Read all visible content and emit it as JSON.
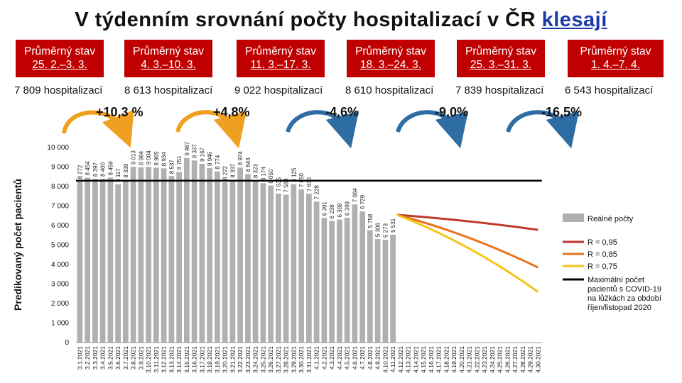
{
  "title": {
    "main": "V týdenním srovnání počty hospitalizací v ČR",
    "link": "klesají"
  },
  "periods": [
    {
      "label": "Průměrný stav",
      "range": "25. 2.–3. 3.",
      "hosp": "7 809 hospitalizací"
    },
    {
      "label": "Průměrný stav",
      "range": "4. 3.–10. 3.",
      "hosp": "8 613 hospitalizací"
    },
    {
      "label": "Průměrný stav",
      "range": "11. 3.–17. 3.",
      "hosp": "9 022 hospitalizací"
    },
    {
      "label": "Průměrný stav",
      "range": "18. 3.–24. 3.",
      "hosp": "8 610 hospitalizací"
    },
    {
      "label": "Průměrný stav",
      "range": "25. 3.–31. 3.",
      "hosp": "7 839 hospitalizací"
    },
    {
      "label": "Průměrný stav",
      "range": "1. 4.–7. 4.",
      "hosp": "6 543 hospitalizací"
    }
  ],
  "changes": [
    "+10,3 %",
    "+4,8%",
    "-4,6%",
    "-9,0%",
    "-16,5%"
  ],
  "colors": {
    "banner": "#c00000",
    "bars": "#b0b0b0",
    "up_arrow": "#f0a020",
    "down_arrow": "#2e6da4",
    "r095": "#c0392b",
    "r085": "#e8731a",
    "r075": "#f5c518",
    "max_line": "#000000",
    "title_link": "#1a3aa8"
  },
  "chart_data": {
    "type": "bar",
    "ylabel": "Predikovaný počet pacientů",
    "ylim": [
      0,
      10000
    ],
    "yticks": [
      "0",
      "1 000",
      "2 000",
      "3 000",
      "4 000",
      "5 000",
      "6 000",
      "7 000",
      "8 000",
      "9 000",
      "10 000"
    ],
    "categories": [
      "3.1.2021",
      "3.2.2021",
      "3.3.2021",
      "3.4.2021",
      "3.5.2021",
      "3.6.2021",
      "3.7.2021",
      "3.8.2021",
      "3.9.2021",
      "3.10.2021",
      "3.11.2021",
      "3.12.2021",
      "3.13.2021",
      "3.14.2021",
      "3.15.2021",
      "3.16.2021",
      "3.17.2021",
      "3.18.2021",
      "3.19.2021",
      "3.20.2021",
      "3.21.2021",
      "3.22.2021",
      "3.23.2021",
      "3.24.2021",
      "3.25.2021",
      "3.26.2021",
      "3.27.2021",
      "3.28.2021",
      "3.29.2021",
      "3.30.2021",
      "3.31.2021",
      "4.1.2021",
      "4.2.2021",
      "4.3.2021",
      "4.4.2021",
      "4.5.2021",
      "4.6.2021",
      "4.7.2021",
      "4.8.2021",
      "4.9.2021",
      "4.10.2021",
      "4.11.2021",
      "4.12.2021",
      "4.13.2021",
      "4.14.2021",
      "4.15.2021",
      "4.16.2021",
      "4.17.2021",
      "4.18.2021",
      "4.19.2021",
      "4.20.2021",
      "4.21.2021",
      "4.22.2021",
      "4.23.2021",
      "4.24.2021",
      "4.25.2021",
      "4.26.2021",
      "4.27.2021",
      "4.28.2021",
      "4.29.2021",
      "4.30.2021"
    ],
    "bar_labels": [
      "8 272",
      "8 454",
      "8 397",
      "8 400",
      "8 459",
      "8 117",
      "8 339",
      "9 013",
      "8 984",
      "9 004",
      "8 965",
      "8 934",
      "8 537",
      "8 751",
      "9 467",
      "9 337",
      "9 167",
      "8 946",
      "8 774",
      "8 222",
      "8 337",
      "8 974",
      "8 643",
      "8 323",
      "8 174",
      "8 050",
      "7 635",
      "7 583",
      "8 125",
      "7 850",
      "7 630",
      "7 228",
      "6 391",
      "6 238",
      "6 308",
      "6 399",
      "7 084",
      "6 729",
      "5 758",
      "5 306",
      "5 273",
      "5 531"
    ],
    "bars": [
      {
        "x": "3.1.2021",
        "y": 8272
      },
      {
        "x": "3.2.2021",
        "y": 8454
      },
      {
        "x": "3.3.2021",
        "y": 8397
      },
      {
        "x": "3.4.2021",
        "y": 8400
      },
      {
        "x": "3.5.2021",
        "y": 8459
      },
      {
        "x": "3.6.2021",
        "y": 8117
      },
      {
        "x": "3.7.2021",
        "y": 8339
      },
      {
        "x": "3.8.2021",
        "y": 9013
      },
      {
        "x": "3.9.2021",
        "y": 8984
      },
      {
        "x": "3.10.2021",
        "y": 9004
      },
      {
        "x": "3.11.2021",
        "y": 8965
      },
      {
        "x": "3.12.2021",
        "y": 8934
      },
      {
        "x": "3.13.2021",
        "y": 8537
      },
      {
        "x": "3.14.2021",
        "y": 8751
      },
      {
        "x": "3.15.2021",
        "y": 9467
      },
      {
        "x": "3.16.2021",
        "y": 9337
      },
      {
        "x": "3.17.2021",
        "y": 9167
      },
      {
        "x": "3.18.2021",
        "y": 8946
      },
      {
        "x": "3.19.2021",
        "y": 8774
      },
      {
        "x": "3.20.2021",
        "y": 8222
      },
      {
        "x": "3.21.2021",
        "y": 8337
      },
      {
        "x": "3.22.2021",
        "y": 8974
      },
      {
        "x": "3.23.2021",
        "y": 8643
      },
      {
        "x": "3.24.2021",
        "y": 8323
      },
      {
        "x": "3.25.2021",
        "y": 8174
      },
      {
        "x": "3.26.2021",
        "y": 8050
      },
      {
        "x": "3.27.2021",
        "y": 7635
      },
      {
        "x": "3.28.2021",
        "y": 7583
      },
      {
        "x": "3.29.2021",
        "y": 8125
      },
      {
        "x": "3.30.2021",
        "y": 7850
      },
      {
        "x": "3.31.2021",
        "y": 7630
      },
      {
        "x": "4.1.2021",
        "y": 7228
      },
      {
        "x": "4.2.2021",
        "y": 6391
      },
      {
        "x": "4.3.2021",
        "y": 6238
      },
      {
        "x": "4.4.2021",
        "y": 6308
      },
      {
        "x": "4.5.2021",
        "y": 6399
      },
      {
        "x": "4.6.2021",
        "y": 7084
      },
      {
        "x": "4.7.2021",
        "y": 6729
      },
      {
        "x": "4.8.2021",
        "y": 5758
      },
      {
        "x": "4.9.2021",
        "y": 5306
      },
      {
        "x": "4.10.2021",
        "y": 5273
      },
      {
        "x": "4.11.2021",
        "y": 5531
      }
    ],
    "projections": [
      {
        "name": "R = 0,95",
        "color": "#c0392b",
        "points": [
          {
            "x": "4.12.2021",
            "y": 6550
          },
          {
            "x": "4.30.2021",
            "y": 5780
          }
        ]
      },
      {
        "name": "R = 0,85",
        "color": "#e8731a",
        "points": [
          {
            "x": "4.12.2021",
            "y": 6550
          },
          {
            "x": "4.30.2021",
            "y": 3850
          }
        ]
      },
      {
        "name": "R = 0,75",
        "color": "#f5c518",
        "points": [
          {
            "x": "4.12.2021",
            "y": 6550
          },
          {
            "x": "4.30.2021",
            "y": 2600
          }
        ]
      }
    ],
    "max_line": {
      "name": "Maximální počet pacientů s COVID-19 na lůžkách za období říjen/listopad 2020",
      "y": 8300
    },
    "legend": {
      "bars": "Reálné počty",
      "r095": "R = 0,95",
      "r085": "R = 0,85",
      "r075": "R = 0,75",
      "max_lines": [
        "Maximální počet",
        "pacientů s COVID-19",
        "na lůžkách za období",
        "říjen/listopad 2020"
      ]
    }
  }
}
